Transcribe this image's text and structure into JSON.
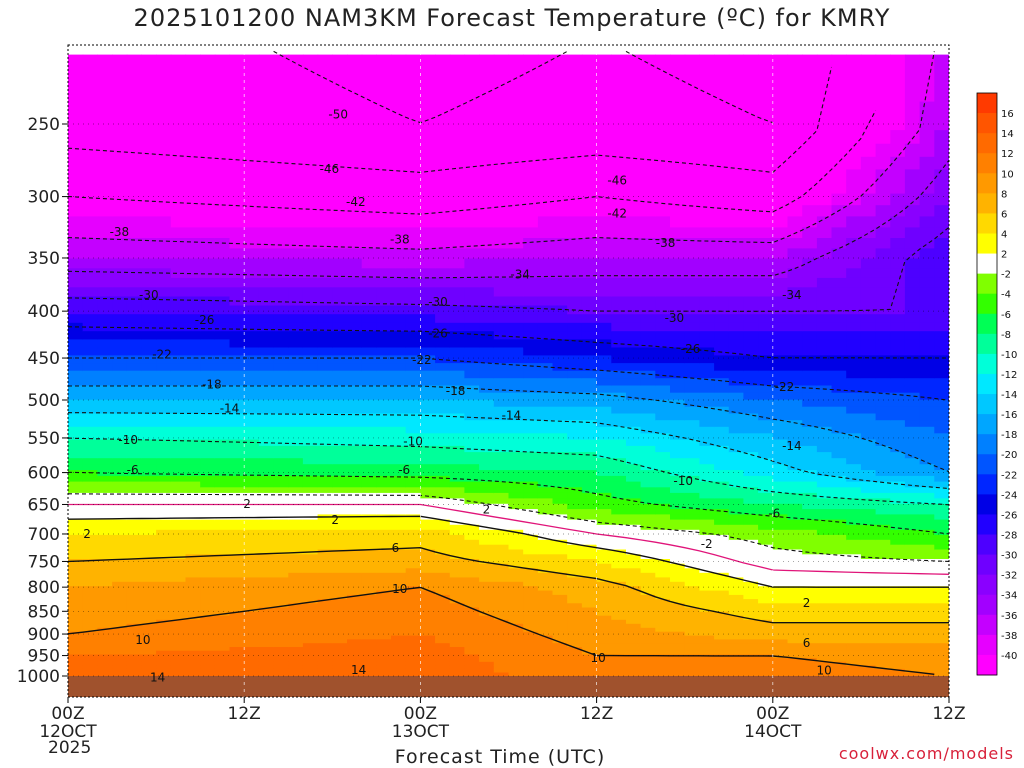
{
  "chart_data": {
    "type": "heatmap",
    "title": "2025101200 NAM3KM Forecast Temperature (ºC) for KMRY",
    "xlabel": "Forecast Time (UTC)",
    "ylabel": "",
    "credit": "coolwx.com/models",
    "year_label": "2025",
    "x_range_hours": [
      0,
      60
    ],
    "x_ticks": [
      {
        "hour": 0,
        "label": "00Z",
        "date": "12OCT"
      },
      {
        "hour": 12,
        "label": "12Z",
        "date": ""
      },
      {
        "hour": 24,
        "label": "00Z",
        "date": "13OCT"
      },
      {
        "hour": 36,
        "label": "12Z",
        "date": ""
      },
      {
        "hour": 48,
        "label": "00Z",
        "date": "14OCT"
      },
      {
        "hour": 60,
        "label": "12Z",
        "date": ""
      }
    ],
    "y_range_hpa": [
      1030,
      200
    ],
    "y_ticks": [
      250,
      300,
      350,
      400,
      450,
      500,
      550,
      600,
      650,
      700,
      750,
      800,
      850,
      900,
      950,
      1000
    ],
    "colorbar": {
      "bounds": [
        -42,
        -40,
        -38,
        -36,
        -34,
        -32,
        -30,
        -28,
        -26,
        -24,
        -22,
        -20,
        -18,
        -16,
        -14,
        -12,
        -10,
        -8,
        -6,
        -4,
        -2,
        2,
        4,
        6,
        8,
        10,
        12,
        14,
        16,
        18
      ],
      "labels": [
        "16",
        "14",
        "12",
        "10",
        "8",
        "6",
        "4",
        "2",
        "-2",
        "-4",
        "-6",
        "-8",
        "-10",
        "-12",
        "-14",
        "-16",
        "-18",
        "-20",
        "-22",
        "-24",
        "-26",
        "-28",
        "-30",
        "-32",
        "-34",
        "-36",
        "-38",
        "-40"
      ],
      "label_values": [
        16,
        14,
        12,
        10,
        8,
        6,
        4,
        2,
        -2,
        -4,
        -6,
        -8,
        -10,
        -12,
        -14,
        -16,
        -18,
        -20,
        -22,
        -24,
        -26,
        -28,
        -30,
        -32,
        -34,
        -36,
        -38,
        -40
      ],
      "colors": [
        "#ff00ff",
        "#e600ff",
        "#c400ff",
        "#a200ff",
        "#8a00ff",
        "#6f00ff",
        "#4d00ff",
        "#2100ff",
        "#0000e6",
        "#0026ff",
        "#0055ff",
        "#0080ff",
        "#00a6ff",
        "#00c8ff",
        "#00e8ff",
        "#00ffd9",
        "#00ff9a",
        "#00ff55",
        "#33ff00",
        "#80ff00",
        "#ffffff",
        "#ffff00",
        "#ffd900",
        "#ffb300",
        "#ff9900",
        "#ff8000",
        "#ff6a00",
        "#ff5500",
        "#ff3a00"
      ]
    },
    "temperature_profile_series": [
      {
        "hour": 0,
        "levels_hpa": [
          250,
          300,
          350,
          400,
          450,
          500,
          550,
          600,
          650,
          700,
          750,
          800,
          850,
          900,
          950,
          1000
        ],
        "temps_c": [
          -48,
          -42,
          -36,
          -28,
          -22,
          -16,
          -10,
          -6,
          0,
          4,
          6,
          8,
          9,
          10,
          12,
          13
        ]
      },
      {
        "hour": 24,
        "levels_hpa": [
          250,
          300,
          350,
          400,
          450,
          500,
          550,
          600,
          650,
          700,
          750,
          800,
          850,
          900,
          950,
          1000
        ],
        "temps_c": [
          -50,
          -44,
          -37,
          -29,
          -22,
          -16,
          -11,
          -7,
          0,
          5,
          7,
          10,
          11,
          12,
          13,
          13
        ]
      },
      {
        "hour": 36,
        "levels_hpa": [
          250,
          300,
          350,
          400,
          450,
          500,
          550,
          600,
          650,
          700,
          750,
          800,
          850,
          900,
          950,
          1000
        ],
        "temps_c": [
          -49,
          -42,
          -36,
          -30,
          -24,
          -17,
          -12,
          -8,
          -5,
          0,
          4,
          7,
          8,
          9,
          10,
          11
        ]
      },
      {
        "hour": 48,
        "levels_hpa": [
          250,
          300,
          350,
          400,
          450,
          500,
          550,
          600,
          650,
          700,
          750,
          800,
          850,
          900,
          950,
          1000
        ],
        "temps_c": [
          -50,
          -44,
          -36,
          -30,
          -26,
          -20,
          -16,
          -13,
          -8,
          -3,
          -1,
          2,
          5,
          7,
          10,
          11
        ]
      },
      {
        "hour": 60,
        "levels_hpa": [
          250,
          300,
          350,
          400,
          450,
          500,
          550,
          600,
          650,
          700,
          750,
          800,
          850,
          900,
          950,
          1000
        ],
        "temps_c": [
          -36,
          -32,
          -28,
          -30,
          -26,
          -22,
          -20,
          -18,
          -10,
          -6,
          -2,
          2,
          5,
          7,
          9,
          10
        ]
      }
    ],
    "ground_level_hpa": 1000,
    "contour_labels": [
      {
        "text": "-50",
        "hour": 18.4,
        "hpa": 244
      },
      {
        "text": "-46",
        "hour": 17.8,
        "hpa": 280
      },
      {
        "text": "-46",
        "hour": 37.4,
        "hpa": 288
      },
      {
        "text": "-42",
        "hour": 19.6,
        "hpa": 304
      },
      {
        "text": "-42",
        "hour": 37.4,
        "hpa": 313
      },
      {
        "text": "-38",
        "hour": 3.5,
        "hpa": 328
      },
      {
        "text": "-38",
        "hour": 22.6,
        "hpa": 334
      },
      {
        "text": "-38",
        "hour": 40.7,
        "hpa": 337
      },
      {
        "text": "-34",
        "hour": 30.8,
        "hpa": 365
      },
      {
        "text": "-34",
        "hour": 49.3,
        "hpa": 384
      },
      {
        "text": "-30",
        "hour": 5.5,
        "hpa": 384
      },
      {
        "text": "-30",
        "hour": 25.2,
        "hpa": 391
      },
      {
        "text": "-30",
        "hour": 41.3,
        "hpa": 407
      },
      {
        "text": "-26",
        "hour": 9.3,
        "hpa": 409
      },
      {
        "text": "-26",
        "hour": 25.2,
        "hpa": 423
      },
      {
        "text": "-26",
        "hour": 42.4,
        "hpa": 440
      },
      {
        "text": "-22",
        "hour": 6.4,
        "hpa": 446
      },
      {
        "text": "-22",
        "hour": 24.1,
        "hpa": 452
      },
      {
        "text": "-22",
        "hour": 48.8,
        "hpa": 484
      },
      {
        "text": "-18",
        "hour": 9.8,
        "hpa": 481
      },
      {
        "text": "-18",
        "hour": 26.4,
        "hpa": 489
      },
      {
        "text": "-14",
        "hour": 11.0,
        "hpa": 511
      },
      {
        "text": "-14",
        "hour": 30.2,
        "hpa": 520
      },
      {
        "text": "-14",
        "hour": 49.3,
        "hpa": 561
      },
      {
        "text": "-10",
        "hour": 4.1,
        "hpa": 553
      },
      {
        "text": "-10",
        "hour": 23.5,
        "hpa": 555
      },
      {
        "text": "-10",
        "hour": 41.9,
        "hpa": 613
      },
      {
        "text": "-6",
        "hour": 4.4,
        "hpa": 596
      },
      {
        "text": "-6",
        "hour": 22.9,
        "hpa": 596
      },
      {
        "text": "-6",
        "hour": 48.1,
        "hpa": 665
      },
      {
        "text": "-2",
        "hour": 43.5,
        "hpa": 718
      },
      {
        "text": "2",
        "hour": 12.2,
        "hpa": 649
      },
      {
        "text": "2",
        "hour": 28.5,
        "hpa": 658
      },
      {
        "text": "2",
        "hour": 18.2,
        "hpa": 676
      },
      {
        "text": "2",
        "hour": 1.3,
        "hpa": 700
      },
      {
        "text": "2",
        "hour": 50.3,
        "hpa": 833
      },
      {
        "text": "6",
        "hour": 22.3,
        "hpa": 725
      },
      {
        "text": "6",
        "hour": 50.3,
        "hpa": 920
      },
      {
        "text": "10",
        "hour": 22.6,
        "hpa": 804
      },
      {
        "text": "10",
        "hour": 5.1,
        "hpa": 914
      },
      {
        "text": "10",
        "hour": 36.1,
        "hpa": 956
      },
      {
        "text": "10",
        "hour": 51.5,
        "hpa": 986
      },
      {
        "text": "14",
        "hour": 19.8,
        "hpa": 985
      },
      {
        "text": "14",
        "hour": 6.1,
        "hpa": 1004
      }
    ]
  }
}
